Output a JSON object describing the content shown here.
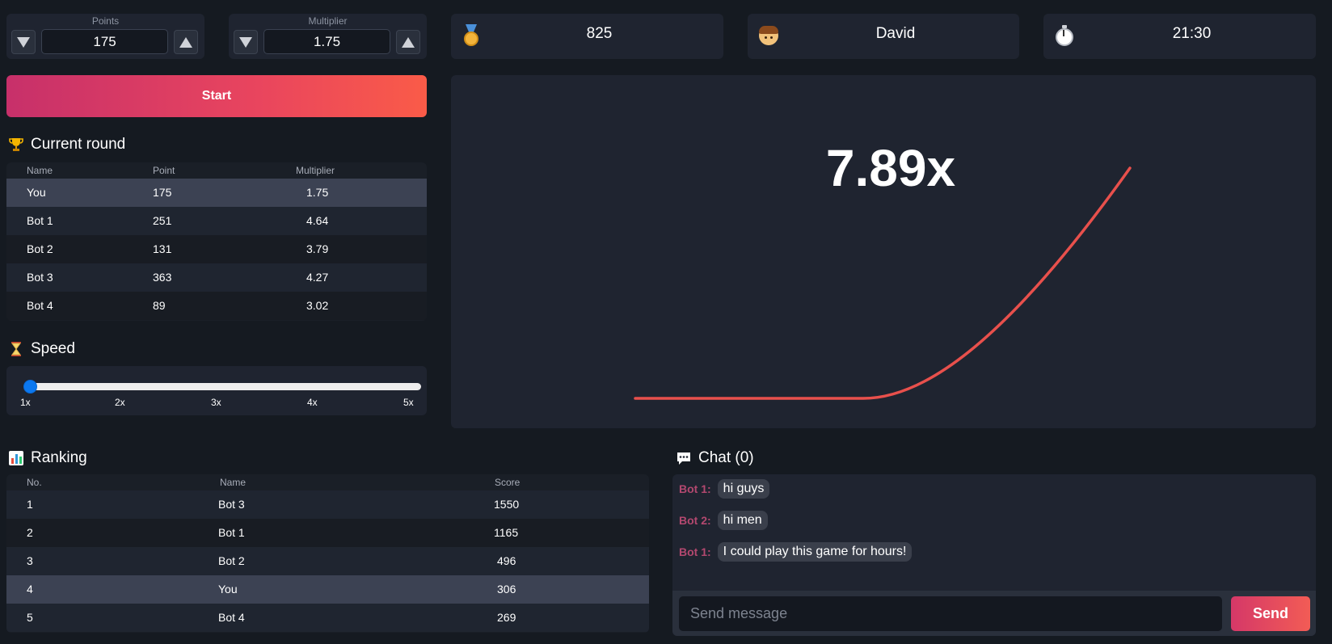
{
  "controls": {
    "points": {
      "label": "Points",
      "value": "175"
    },
    "multiplier": {
      "label": "Multiplier",
      "value": "1.75"
    },
    "start_label": "Start"
  },
  "stats": {
    "score": "825",
    "player_name": "David",
    "time": "21:30"
  },
  "current_round": {
    "title": "Current round",
    "columns": [
      "Name",
      "Point",
      "Multiplier"
    ],
    "rows": [
      [
        "You",
        "175",
        "1.75"
      ],
      [
        "Bot 1",
        "251",
        "4.64"
      ],
      [
        "Bot 2",
        "131",
        "3.79"
      ],
      [
        "Bot 3",
        "363",
        "4.27"
      ],
      [
        "Bot 4",
        "89",
        "3.02"
      ]
    ]
  },
  "speed": {
    "title": "Speed",
    "ticks": [
      "1x",
      "2x",
      "3x",
      "4x",
      "5x"
    ],
    "value": 1,
    "min": 1,
    "max": 5
  },
  "game": {
    "multiplier_display": "7.89x",
    "curve_color": "#e8504c",
    "final_multiplier": 7.89
  },
  "ranking": {
    "title": "Ranking",
    "columns": [
      "No.",
      "Name",
      "Score"
    ],
    "rows": [
      [
        "1",
        "Bot 3",
        "1550"
      ],
      [
        "2",
        "Bot 1",
        "1165"
      ],
      [
        "3",
        "Bot 2",
        "496"
      ],
      [
        "4",
        "You",
        "306"
      ],
      [
        "5",
        "Bot 4",
        "269"
      ]
    ]
  },
  "chat": {
    "title": "Chat (0)",
    "messages": [
      {
        "author": "Bot 1:",
        "text": "hi guys"
      },
      {
        "author": "Bot 2:",
        "text": "hi men"
      },
      {
        "author": "Bot 1:",
        "text": "I could play this game for hours!"
      }
    ],
    "input_placeholder": "Send message",
    "send_label": "Send"
  }
}
